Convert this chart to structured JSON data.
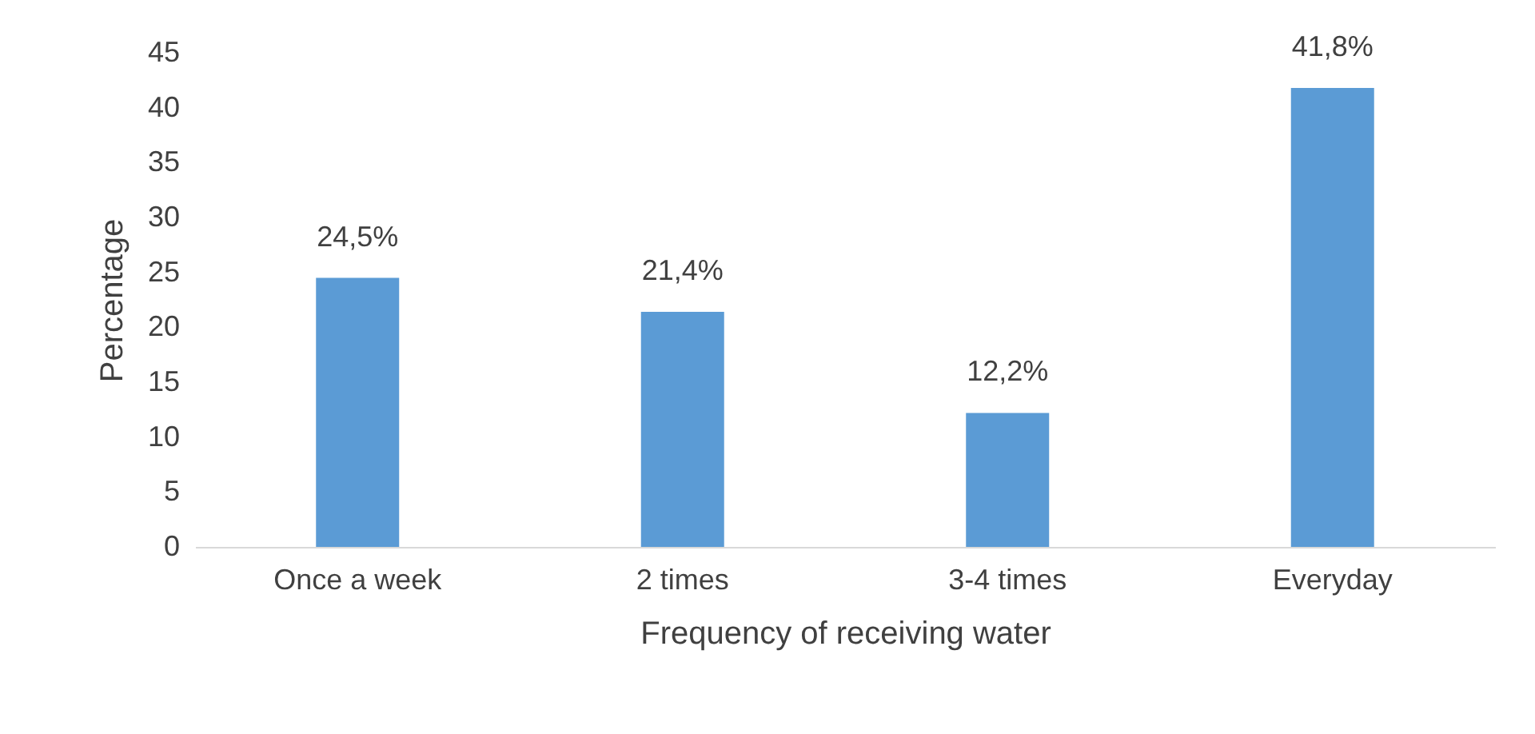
{
  "chart_data": {
    "type": "bar",
    "categories": [
      "Once a week",
      "2 times",
      "3-4 times",
      "Everyday"
    ],
    "values": [
      24.5,
      21.4,
      12.2,
      41.8
    ],
    "value_labels": [
      "24,5%",
      "21,4%",
      "12,2%",
      "41,8%"
    ],
    "color": "#5b9bd5",
    "xlabel": "Frequency of receiving water",
    "ylabel": "Percentage",
    "ylim": [
      0,
      45
    ],
    "yticks": [
      0,
      5,
      10,
      15,
      20,
      25,
      30,
      35,
      40,
      45
    ]
  }
}
